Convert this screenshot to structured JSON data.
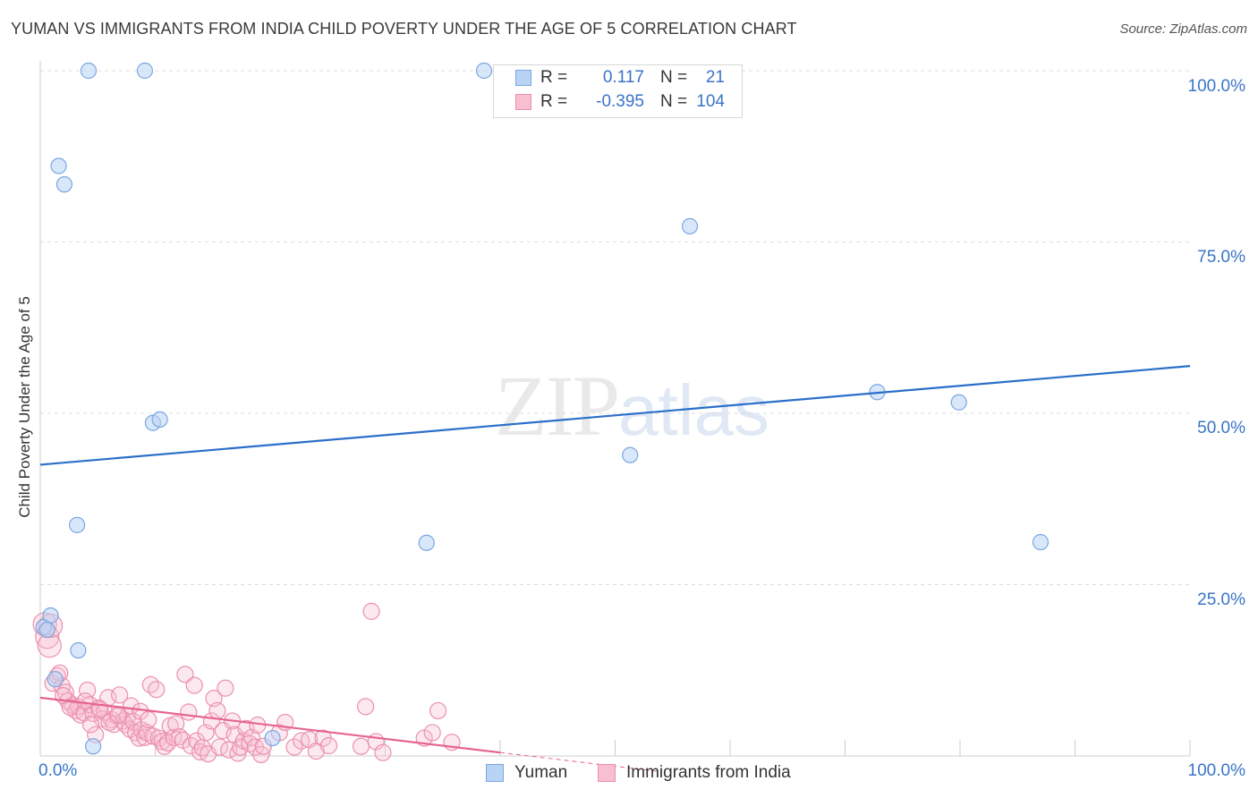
{
  "header": {
    "title": "YUMAN VS IMMIGRANTS FROM INDIA CHILD POVERTY UNDER THE AGE OF 5 CORRELATION CHART",
    "source": "Source: ZipAtlas.com"
  },
  "legend": {
    "rows": [
      {
        "r_label": "R =",
        "r_value": "0.117",
        "n_label": "N =",
        "n_value": "21"
      },
      {
        "r_label": "R =",
        "r_value": "-0.395",
        "n_label": "N =",
        "n_value": "104"
      }
    ]
  },
  "watermark": {
    "zip": "ZIP",
    "atlas": "atlas"
  },
  "colors": {
    "yuman_fill": "#b9d3f5",
    "yuman_stroke": "#7aa6e0",
    "yuman_line": "#2a6fc9",
    "india_fill": "#f7bfd0",
    "india_stroke": "#ec8fae",
    "india_line": "#e6648e",
    "tick_text": "#3a74c7",
    "grid": "#dddddd"
  },
  "chart_data": {
    "type": "scatter",
    "title": "YUMAN VS IMMIGRANTS FROM INDIA CHILD POVERTY UNDER THE AGE OF 5 CORRELATION CHART",
    "xlabel": "",
    "ylabel": "Child Poverty Under the Age of 5",
    "xlim": [
      0,
      100
    ],
    "ylim": [
      0,
      100
    ],
    "x_tick_labels": [
      "0.0%",
      "100.0%"
    ],
    "y_tick_labels": [
      "25.0%",
      "50.0%",
      "75.0%",
      "100.0%"
    ],
    "y_ticks": [
      25,
      50,
      75,
      100
    ],
    "legend_position": "top-center",
    "grid": true,
    "series": [
      {
        "name": "Yuman",
        "R": 0.117,
        "N": 21,
        "trend": {
          "x": [
            0,
            100
          ],
          "y": [
            42.5,
            56.9
          ]
        },
        "points": [
          {
            "x": 0.3,
            "y": 18.8
          },
          {
            "x": 0.9,
            "y": 20.5
          },
          {
            "x": 1.3,
            "y": 11.2
          },
          {
            "x": 1.6,
            "y": 86.1
          },
          {
            "x": 2.1,
            "y": 83.4
          },
          {
            "x": 3.2,
            "y": 33.7
          },
          {
            "x": 3.3,
            "y": 15.4
          },
          {
            "x": 4.6,
            "y": 1.4
          },
          {
            "x": 4.2,
            "y": 100.0
          },
          {
            "x": 9.1,
            "y": 100.0
          },
          {
            "x": 9.8,
            "y": 48.6
          },
          {
            "x": 10.4,
            "y": 49.1
          },
          {
            "x": 20.2,
            "y": 2.6
          },
          {
            "x": 33.6,
            "y": 31.1
          },
          {
            "x": 38.6,
            "y": 100.0
          },
          {
            "x": 51.3,
            "y": 43.9
          },
          {
            "x": 56.5,
            "y": 77.3
          },
          {
            "x": 72.8,
            "y": 53.1
          },
          {
            "x": 79.9,
            "y": 51.6
          },
          {
            "x": 87.0,
            "y": 31.2
          },
          {
            "x": 0.6,
            "y": 18.4
          }
        ]
      },
      {
        "name": "Immigrants from India",
        "R": -0.395,
        "N": 104,
        "trend": {
          "x": [
            0,
            40
          ],
          "y": [
            8.5,
            0.5
          ]
        },
        "points": [
          {
            "x": 0.4,
            "y": 19.2
          },
          {
            "x": 0.6,
            "y": 17.4
          },
          {
            "x": 0.8,
            "y": 16.1
          },
          {
            "x": 0.9,
            "y": 19.0
          },
          {
            "x": 1.1,
            "y": 10.6
          },
          {
            "x": 1.5,
            "y": 11.7
          },
          {
            "x": 1.9,
            "y": 10.2
          },
          {
            "x": 2.2,
            "y": 9.3
          },
          {
            "x": 2.4,
            "y": 8.0
          },
          {
            "x": 2.8,
            "y": 7.4
          },
          {
            "x": 3.1,
            "y": 6.6
          },
          {
            "x": 3.3,
            "y": 7.2
          },
          {
            "x": 3.5,
            "y": 6.0
          },
          {
            "x": 3.8,
            "y": 6.3
          },
          {
            "x": 4.1,
            "y": 9.6
          },
          {
            "x": 4.3,
            "y": 7.5
          },
          {
            "x": 4.6,
            "y": 6.2
          },
          {
            "x": 4.8,
            "y": 3.1
          },
          {
            "x": 5.1,
            "y": 7.0
          },
          {
            "x": 5.4,
            "y": 5.4
          },
          {
            "x": 5.6,
            "y": 6.4
          },
          {
            "x": 5.9,
            "y": 8.5
          },
          {
            "x": 6.2,
            "y": 5.3
          },
          {
            "x": 6.4,
            "y": 4.6
          },
          {
            "x": 6.7,
            "y": 5.8
          },
          {
            "x": 6.9,
            "y": 8.9
          },
          {
            "x": 7.2,
            "y": 5.1
          },
          {
            "x": 7.4,
            "y": 4.6
          },
          {
            "x": 7.6,
            "y": 5.8
          },
          {
            "x": 7.8,
            "y": 3.9
          },
          {
            "x": 8.1,
            "y": 5.0
          },
          {
            "x": 8.3,
            "y": 3.4
          },
          {
            "x": 8.6,
            "y": 2.6
          },
          {
            "x": 8.8,
            "y": 3.8
          },
          {
            "x": 9.1,
            "y": 2.7
          },
          {
            "x": 9.3,
            "y": 3.4
          },
          {
            "x": 9.6,
            "y": 10.4
          },
          {
            "x": 9.8,
            "y": 2.9
          },
          {
            "x": 10.1,
            "y": 9.7
          },
          {
            "x": 10.3,
            "y": 2.6
          },
          {
            "x": 10.6,
            "y": 2.1
          },
          {
            "x": 10.8,
            "y": 1.4
          },
          {
            "x": 11.1,
            "y": 1.9
          },
          {
            "x": 11.3,
            "y": 4.4
          },
          {
            "x": 11.6,
            "y": 2.7
          },
          {
            "x": 11.8,
            "y": 4.7
          },
          {
            "x": 12.1,
            "y": 2.8
          },
          {
            "x": 12.4,
            "y": 2.3
          },
          {
            "x": 12.6,
            "y": 11.9
          },
          {
            "x": 12.9,
            "y": 6.4
          },
          {
            "x": 13.1,
            "y": 1.5
          },
          {
            "x": 13.4,
            "y": 10.3
          },
          {
            "x": 13.6,
            "y": 2.2
          },
          {
            "x": 13.9,
            "y": 0.6
          },
          {
            "x": 14.1,
            "y": 1.2
          },
          {
            "x": 14.4,
            "y": 3.4
          },
          {
            "x": 14.6,
            "y": 0.3
          },
          {
            "x": 14.9,
            "y": 5.1
          },
          {
            "x": 15.1,
            "y": 8.4
          },
          {
            "x": 15.4,
            "y": 6.6
          },
          {
            "x": 15.6,
            "y": 1.3
          },
          {
            "x": 15.9,
            "y": 3.7
          },
          {
            "x": 16.1,
            "y": 9.9
          },
          {
            "x": 16.4,
            "y": 0.9
          },
          {
            "x": 16.7,
            "y": 5.1
          },
          {
            "x": 16.9,
            "y": 3.1
          },
          {
            "x": 17.2,
            "y": 0.4
          },
          {
            "x": 17.4,
            "y": 1.3
          },
          {
            "x": 17.7,
            "y": 2.2
          },
          {
            "x": 17.9,
            "y": 4.0
          },
          {
            "x": 18.2,
            "y": 1.8
          },
          {
            "x": 18.4,
            "y": 2.7
          },
          {
            "x": 18.7,
            "y": 1.3
          },
          {
            "x": 18.9,
            "y": 4.5
          },
          {
            "x": 19.2,
            "y": 0.2
          },
          {
            "x": 19.4,
            "y": 1.4
          },
          {
            "x": 20.8,
            "y": 3.4
          },
          {
            "x": 21.3,
            "y": 4.9
          },
          {
            "x": 22.1,
            "y": 1.3
          },
          {
            "x": 22.7,
            "y": 2.2
          },
          {
            "x": 23.4,
            "y": 2.4
          },
          {
            "x": 24.0,
            "y": 0.7
          },
          {
            "x": 24.6,
            "y": 2.6
          },
          {
            "x": 25.1,
            "y": 1.5
          },
          {
            "x": 27.9,
            "y": 1.4
          },
          {
            "x": 28.3,
            "y": 7.2
          },
          {
            "x": 28.8,
            "y": 21.1
          },
          {
            "x": 29.2,
            "y": 2.1
          },
          {
            "x": 29.8,
            "y": 0.5
          },
          {
            "x": 33.4,
            "y": 2.6
          },
          {
            "x": 34.1,
            "y": 3.4
          },
          {
            "x": 34.6,
            "y": 6.6
          },
          {
            "x": 35.8,
            "y": 2.0
          },
          {
            "x": 2.0,
            "y": 8.8
          },
          {
            "x": 1.7,
            "y": 12.1
          },
          {
            "x": 2.6,
            "y": 7.1
          },
          {
            "x": 3.9,
            "y": 8.0
          },
          {
            "x": 4.4,
            "y": 4.6
          },
          {
            "x": 5.2,
            "y": 6.8
          },
          {
            "x": 6.0,
            "y": 4.9
          },
          {
            "x": 6.8,
            "y": 6.0
          },
          {
            "x": 7.9,
            "y": 7.3
          },
          {
            "x": 8.7,
            "y": 6.5
          },
          {
            "x": 9.4,
            "y": 5.3
          }
        ]
      }
    ]
  }
}
